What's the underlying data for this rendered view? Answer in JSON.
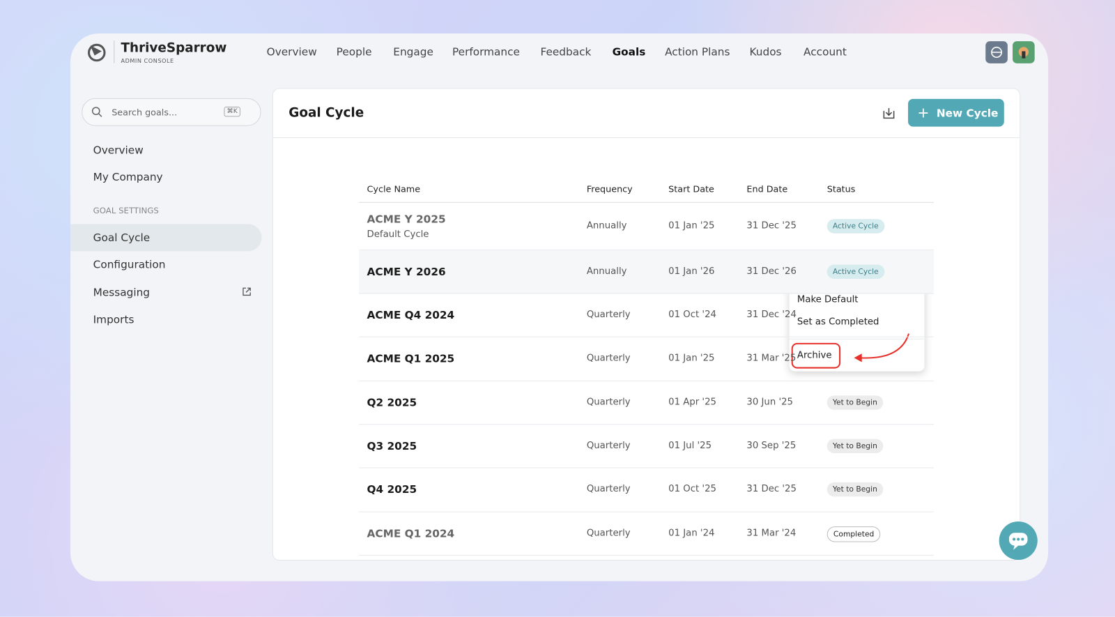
{
  "brand": {
    "name": "ThriveSparrow",
    "subtitle": "ADMIN CONSOLE"
  },
  "nav": [
    "Overview",
    "People",
    "Engage",
    "Performance",
    "Feedback",
    "Goals",
    "Action Plans",
    "Kudos",
    "Account"
  ],
  "search": {
    "placeholder": "Search goals...",
    "shortcut": "⌘K"
  },
  "sidebar": {
    "items": [
      "Overview",
      "My Company"
    ],
    "section": "GOAL SETTINGS",
    "settings": [
      "Goal Cycle",
      "Configuration",
      "Messaging",
      "Imports"
    ]
  },
  "panel": {
    "title": "Goal Cycle",
    "button": "New Cycle"
  },
  "table": {
    "columns": [
      "Cycle Name",
      "Frequency",
      "Start Date",
      "End Date",
      "Status"
    ],
    "rows": [
      {
        "name": "ACME Y 2025",
        "note": "Default Cycle",
        "frequency": "Annually",
        "start": "01 Jan '25",
        "end": "31 Dec '25",
        "status": "Active Cycle"
      },
      {
        "name": "ACME Y 2026",
        "frequency": "Annually",
        "start": "01 Jan '26",
        "end": "31 Dec '26",
        "status": "Active Cycle"
      },
      {
        "name": "ACME Q4 2024",
        "frequency": "Quarterly",
        "start": "01 Oct '24",
        "end": "31 Dec '24"
      },
      {
        "name": "ACME Q1 2025",
        "frequency": "Quarterly",
        "start": "01 Jan '25",
        "end": "31 Mar '25"
      },
      {
        "name": "Q2 2025",
        "frequency": "Quarterly",
        "start": "01 Apr '25",
        "end": "30 Jun '25",
        "status": "Yet to Begin"
      },
      {
        "name": "Q3 2025",
        "frequency": "Quarterly",
        "start": "01 Jul '25",
        "end": "30 Sep '25",
        "status": "Yet to Begin"
      },
      {
        "name": "Q4 2025",
        "frequency": "Quarterly",
        "start": "01 Oct '25",
        "end": "31 Dec '25",
        "status": "Yet to Begin"
      },
      {
        "name": "ACME Q1 2024",
        "frequency": "Quarterly",
        "start": "01 Jan '24",
        "end": "31 Mar '24",
        "status": "Completed"
      }
    ]
  },
  "menu": [
    "Make Default",
    "Set as Completed",
    "Archive"
  ]
}
